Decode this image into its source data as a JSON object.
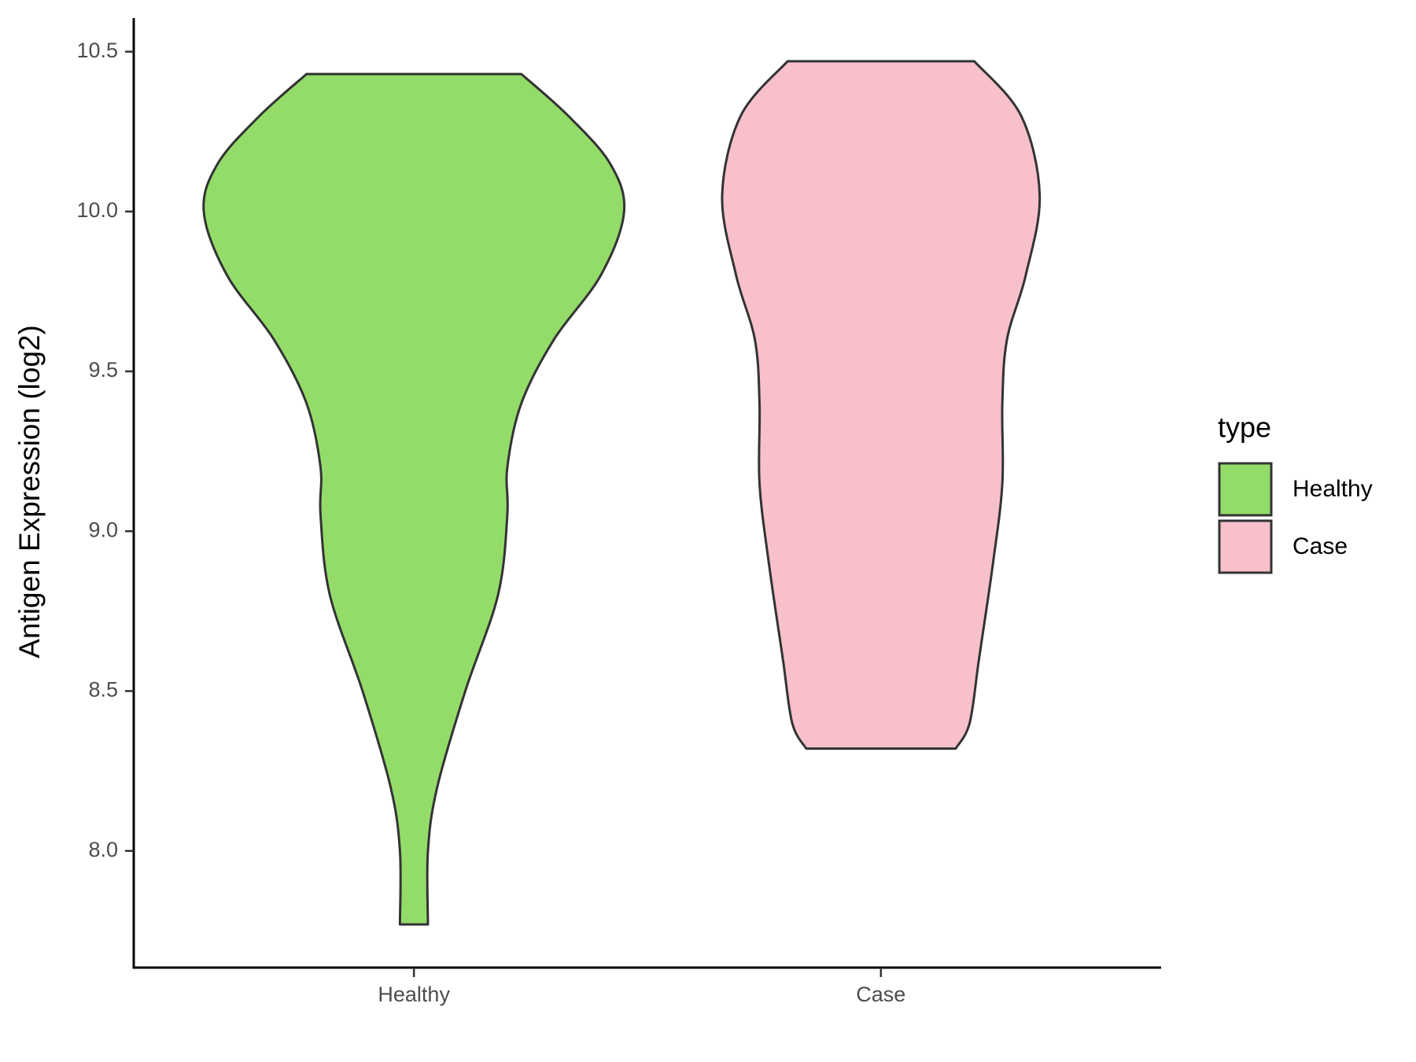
{
  "chart_data": {
    "type": "violin",
    "y_label": "Antigen Expression (log2)",
    "categories": [
      "Healthy",
      "Case"
    ],
    "legend_title": "type",
    "legend": "right",
    "series": [
      {
        "name": "Healthy",
        "color": "#93dc6a",
        "y": [
          7.77,
          8.0,
          8.2,
          8.5,
          8.8,
          9.05,
          9.2,
          9.4,
          9.6,
          9.8,
          10.0,
          10.15,
          10.3,
          10.43
        ],
        "width": [
          0.03,
          0.03,
          0.05,
          0.11,
          0.18,
          0.2,
          0.2,
          0.23,
          0.3,
          0.4,
          0.45,
          0.42,
          0.33,
          0.23
        ]
      },
      {
        "name": "Case",
        "color": "#f7c0cb",
        "y": [
          8.32,
          8.4,
          8.6,
          8.9,
          9.15,
          9.4,
          9.6,
          9.8,
          10.05,
          10.3,
          10.47
        ],
        "width": [
          0.16,
          0.19,
          0.21,
          0.24,
          0.26,
          0.26,
          0.27,
          0.31,
          0.34,
          0.3,
          0.2
        ]
      }
    ],
    "ylim": [
      7.635,
      10.605
    ],
    "yticks": [
      {
        "value": 8,
        "label": "8.0"
      },
      8.5,
      {
        "value": 9,
        "label": "9.0"
      },
      9.5,
      {
        "value": 10,
        "label": "10.0"
      },
      10.5
    ]
  }
}
